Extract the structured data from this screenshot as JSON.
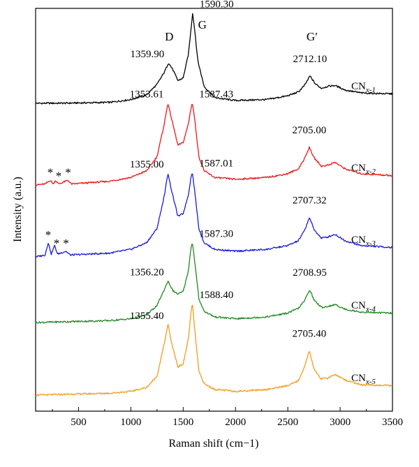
{
  "chart_data": {
    "type": "line",
    "xlabel": "Raman shift (cm−1)",
    "ylabel": "Intensity (a.u.)",
    "xlim": [
      90,
      3500
    ],
    "xticks": [
      500,
      1000,
      1500,
      2000,
      2500,
      3000,
      3500
    ],
    "xtick_labels": [
      "500",
      "1000",
      "1500",
      "2000",
      "2500",
      "3000",
      "3500"
    ],
    "y_ticks_shown": false,
    "legend": "none",
    "peak_names": {
      "D": "D",
      "G": "G",
      "Gp": "G′"
    },
    "series": [
      {
        "name": "CNx-1",
        "label_main": "CN",
        "label_sub": "x-1",
        "color": "#000000",
        "baseline": 0.03,
        "points": [
          [
            90,
            0.0
          ],
          [
            400,
            0.002
          ],
          [
            800,
            0.01
          ],
          [
            1000,
            0.04
          ],
          [
            1150,
            0.09
          ],
          [
            1250,
            0.2
          ],
          [
            1320,
            0.33
          ],
          [
            1359.9,
            0.43
          ],
          [
            1400,
            0.36
          ],
          [
            1450,
            0.24
          ],
          [
            1500,
            0.27
          ],
          [
            1550,
            0.52
          ],
          [
            1575,
            0.79
          ],
          [
            1590.3,
            0.96
          ],
          [
            1610,
            0.78
          ],
          [
            1640,
            0.45
          ],
          [
            1700,
            0.18
          ],
          [
            1800,
            0.06
          ],
          [
            2000,
            0.03
          ],
          [
            2300,
            0.04
          ],
          [
            2500,
            0.08
          ],
          [
            2600,
            0.12
          ],
          [
            2660,
            0.19
          ],
          [
            2712.1,
            0.29
          ],
          [
            2760,
            0.21
          ],
          [
            2820,
            0.16
          ],
          [
            2880,
            0.18
          ],
          [
            2950,
            0.19
          ],
          [
            3050,
            0.14
          ],
          [
            3200,
            0.11
          ],
          [
            3500,
            0.1
          ]
        ],
        "peaks": [
          {
            "label": "1359.90",
            "x": 1359.9
          },
          {
            "label": "1590.30",
            "x": 1590.3
          },
          {
            "label": "2712.10",
            "x": 2712.1
          }
        ],
        "stars": []
      },
      {
        "name": "CNx-2",
        "label_main": "CN",
        "label_sub": "x-2",
        "color": "#e8191c",
        "baseline": 0.03,
        "points": [
          [
            90,
            0.0
          ],
          [
            180,
            0.01
          ],
          [
            230,
            0.05
          ],
          [
            260,
            0.01
          ],
          [
            280,
            0.05
          ],
          [
            310,
            0.01
          ],
          [
            400,
            0.05
          ],
          [
            430,
            0.01
          ],
          [
            800,
            0.04
          ],
          [
            1000,
            0.08
          ],
          [
            1150,
            0.15
          ],
          [
            1250,
            0.3
          ],
          [
            1320,
            0.65
          ],
          [
            1353.61,
            0.87
          ],
          [
            1390,
            0.7
          ],
          [
            1450,
            0.42
          ],
          [
            1500,
            0.45
          ],
          [
            1550,
            0.65
          ],
          [
            1575,
            0.82
          ],
          [
            1587.43,
            0.87
          ],
          [
            1610,
            0.7
          ],
          [
            1650,
            0.3
          ],
          [
            1700,
            0.15
          ],
          [
            1800,
            0.08
          ],
          [
            2000,
            0.06
          ],
          [
            2300,
            0.08
          ],
          [
            2500,
            0.12
          ],
          [
            2600,
            0.17
          ],
          [
            2660,
            0.28
          ],
          [
            2705,
            0.4
          ],
          [
            2750,
            0.29
          ],
          [
            2820,
            0.2
          ],
          [
            2880,
            0.21
          ],
          [
            2950,
            0.24
          ],
          [
            3050,
            0.17
          ],
          [
            3200,
            0.12
          ],
          [
            3500,
            0.1
          ]
        ],
        "peaks": [
          {
            "label": "1353.61",
            "x": 1353.61
          },
          {
            "label": "1587.43",
            "x": 1587.43
          },
          {
            "label": "2705.00",
            "x": 2705.0
          }
        ],
        "stars": [
          230,
          310,
          400
        ]
      },
      {
        "name": "CNx-3",
        "label_main": "CN",
        "label_sub": "x-3",
        "color": "#1a1adb",
        "baseline": 0.03,
        "points": [
          [
            90,
            0.0
          ],
          [
            180,
            0.02
          ],
          [
            210,
            0.15
          ],
          [
            240,
            0.03
          ],
          [
            270,
            0.12
          ],
          [
            300,
            0.03
          ],
          [
            380,
            0.06
          ],
          [
            420,
            0.02
          ],
          [
            800,
            0.04
          ],
          [
            1000,
            0.08
          ],
          [
            1150,
            0.15
          ],
          [
            1250,
            0.3
          ],
          [
            1320,
            0.65
          ],
          [
            1355,
            0.89
          ],
          [
            1390,
            0.7
          ],
          [
            1450,
            0.43
          ],
          [
            1500,
            0.46
          ],
          [
            1550,
            0.66
          ],
          [
            1575,
            0.85
          ],
          [
            1587.01,
            0.9
          ],
          [
            1610,
            0.7
          ],
          [
            1650,
            0.3
          ],
          [
            1700,
            0.15
          ],
          [
            1800,
            0.08
          ],
          [
            2000,
            0.06
          ],
          [
            2300,
            0.08
          ],
          [
            2500,
            0.12
          ],
          [
            2600,
            0.17
          ],
          [
            2660,
            0.28
          ],
          [
            2707.32,
            0.42
          ],
          [
            2750,
            0.29
          ],
          [
            2820,
            0.2
          ],
          [
            2880,
            0.21
          ],
          [
            2950,
            0.24
          ],
          [
            3050,
            0.17
          ],
          [
            3200,
            0.12
          ],
          [
            3500,
            0.1
          ]
        ],
        "peaks": [
          {
            "label": "1355.00",
            "x": 1355.0
          },
          {
            "label": "1587.01",
            "x": 1587.01
          },
          {
            "label": "2707.32",
            "x": 2707.32
          }
        ],
        "stars": [
          210,
          290,
          380
        ]
      },
      {
        "name": "CNx-4",
        "label_main": "CN",
        "label_sub": "x-4",
        "color": "#1f8a1f",
        "baseline": 0.03,
        "points": [
          [
            90,
            0.0
          ],
          [
            800,
            0.02
          ],
          [
            1000,
            0.04
          ],
          [
            1150,
            0.08
          ],
          [
            1250,
            0.18
          ],
          [
            1320,
            0.35
          ],
          [
            1356.2,
            0.44
          ],
          [
            1400,
            0.34
          ],
          [
            1450,
            0.3
          ],
          [
            1500,
            0.33
          ],
          [
            1550,
            0.55
          ],
          [
            1575,
            0.8
          ],
          [
            1587.3,
            0.85
          ],
          [
            1610,
            0.65
          ],
          [
            1650,
            0.25
          ],
          [
            1700,
            0.12
          ],
          [
            1800,
            0.06
          ],
          [
            2000,
            0.04
          ],
          [
            2300,
            0.06
          ],
          [
            2500,
            0.1
          ],
          [
            2600,
            0.15
          ],
          [
            2660,
            0.23
          ],
          [
            2708.95,
            0.35
          ],
          [
            2750,
            0.24
          ],
          [
            2820,
            0.16
          ],
          [
            2880,
            0.17
          ],
          [
            2950,
            0.19
          ],
          [
            3050,
            0.14
          ],
          [
            3200,
            0.11
          ],
          [
            3500,
            0.1
          ]
        ],
        "peaks": [
          {
            "label": "1356.20",
            "x": 1356.2
          },
          {
            "label": "1587.30",
            "x": 1587.3
          },
          {
            "label": "2708.95",
            "x": 2708.95
          }
        ],
        "stars": []
      },
      {
        "name": "CNx-5",
        "label_main": "CN",
        "label_sub": "x-5",
        "color": "#f39c1e",
        "baseline": 0.03,
        "points": [
          [
            90,
            0.0
          ],
          [
            800,
            0.02
          ],
          [
            1000,
            0.04
          ],
          [
            1150,
            0.08
          ],
          [
            1250,
            0.2
          ],
          [
            1320,
            0.55
          ],
          [
            1355.4,
            0.75
          ],
          [
            1390,
            0.55
          ],
          [
            1450,
            0.3
          ],
          [
            1500,
            0.33
          ],
          [
            1550,
            0.6
          ],
          [
            1575,
            0.88
          ],
          [
            1588.4,
            0.97
          ],
          [
            1610,
            0.7
          ],
          [
            1650,
            0.25
          ],
          [
            1700,
            0.12
          ],
          [
            1800,
            0.06
          ],
          [
            2000,
            0.04
          ],
          [
            2300,
            0.06
          ],
          [
            2500,
            0.1
          ],
          [
            2600,
            0.15
          ],
          [
            2660,
            0.3
          ],
          [
            2705.4,
            0.47
          ],
          [
            2750,
            0.28
          ],
          [
            2820,
            0.17
          ],
          [
            2880,
            0.18
          ],
          [
            2950,
            0.22
          ],
          [
            3050,
            0.16
          ],
          [
            3200,
            0.11
          ],
          [
            3500,
            0.1
          ]
        ],
        "peaks": [
          {
            "label": "1355.40",
            "x": 1355.4
          },
          {
            "label": "1588.40",
            "x": 1588.4
          },
          {
            "label": "2705.40",
            "x": 2705.4
          }
        ],
        "stars": []
      }
    ]
  }
}
